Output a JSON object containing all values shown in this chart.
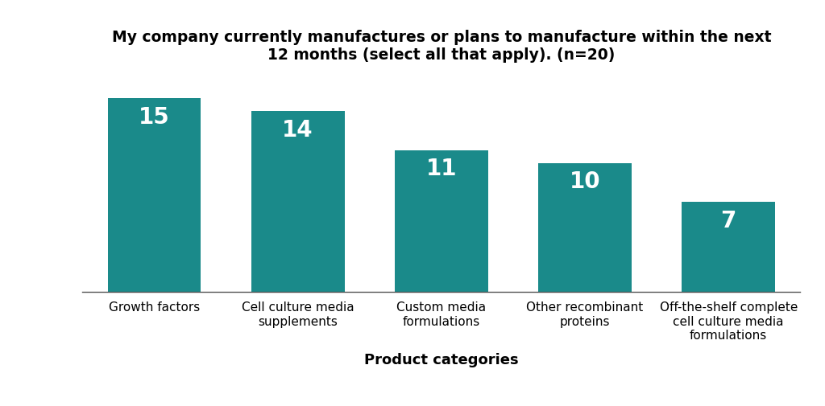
{
  "title": "My company currently manufactures or plans to manufacture within the next\n12 months (select all that apply). (n=20)",
  "categories": [
    "Growth factors",
    "Cell culture media\nsupplements",
    "Custom media\nformulations",
    "Other recombinant\nproteins",
    "Off-the-shelf complete\ncell culture media\nformulations"
  ],
  "values": [
    15,
    14,
    11,
    10,
    7
  ],
  "bar_color": "#1a8a8a",
  "bar_label_color": "#ffffff",
  "xlabel": "Product categories",
  "background_color": "#ffffff",
  "title_fontsize": 13.5,
  "label_fontsize": 13,
  "bar_label_fontsize": 20,
  "tick_label_fontsize": 11,
  "ylim": [
    0,
    17
  ]
}
